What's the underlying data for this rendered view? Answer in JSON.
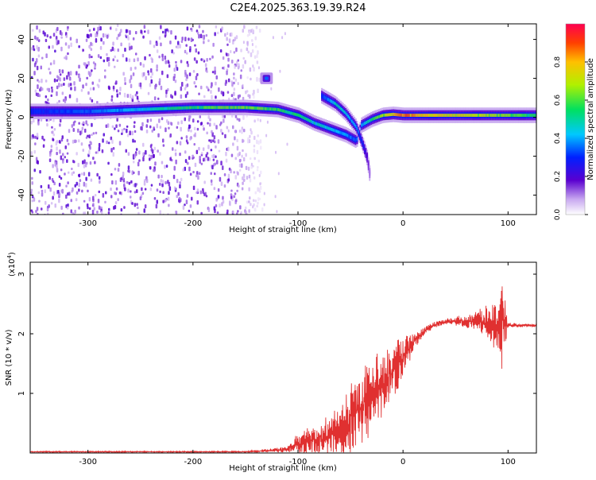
{
  "title": "C2E4.2025.363.19.39.R24",
  "chart_data": [
    {
      "type": "heatmap",
      "name": "spectrogram",
      "xlabel": "Height of straight line (km)",
      "ylabel": "Frequency (Hz)",
      "xlim": [
        -355,
        127
      ],
      "ylim": [
        -50,
        48
      ],
      "x_ticks": [
        -300,
        -200,
        -100,
        0,
        100
      ],
      "x_tick_labels": [
        "-300",
        "-200",
        "-100",
        "0",
        "100"
      ],
      "y_ticks": [
        -40,
        -20,
        0,
        20,
        40
      ],
      "y_tick_labels": [
        "-40",
        "-20",
        "0",
        "20",
        "40"
      ],
      "colorbar": {
        "label": "Normalized spectral amplitude",
        "range": [
          0,
          1
        ],
        "ticks": [
          0.0,
          0.2,
          0.4,
          0.6,
          0.8
        ],
        "tick_labels": [
          "0.0",
          "0.2",
          "0.4",
          "0.6",
          "0.8"
        ]
      },
      "main_band": {
        "x": [
          -355,
          -300,
          -250,
          -200,
          -150,
          -120,
          -100,
          -85,
          -70,
          -55,
          -45,
          -40,
          -30,
          -20,
          -10,
          0,
          20,
          50,
          80,
          100,
          127
        ],
        "freq": [
          3,
          3,
          4,
          5,
          5,
          4,
          1,
          -3,
          -6,
          -9,
          -12,
          -4,
          -1,
          1,
          1.5,
          1,
          1,
          1,
          1,
          1,
          1
        ],
        "amplitude": [
          0.3,
          0.35,
          0.45,
          0.6,
          0.65,
          0.6,
          0.55,
          0.5,
          0.45,
          0.4,
          0.35,
          0.4,
          0.55,
          0.7,
          0.8,
          0.9,
          0.8,
          0.75,
          0.7,
          0.65,
          0.55
        ]
      },
      "secondary_branch": {
        "x": [
          -78,
          -65,
          -55,
          -45,
          -40,
          -35,
          -32
        ],
        "freq": [
          11,
          7,
          2,
          -5,
          -12,
          -20,
          -30
        ],
        "amplitude": [
          0.3,
          0.5,
          0.45,
          0.4,
          0.3,
          0.2,
          0.1
        ]
      },
      "isolated_blob": {
        "x": -130,
        "freq": 20,
        "amplitude": 0.35
      },
      "noise_region": {
        "x": [
          -355,
          -170
        ],
        "amplitude": [
          0.05,
          0.2
        ]
      }
    },
    {
      "type": "line",
      "name": "snr",
      "xlabel": "Height of straight line (km)",
      "ylabel": "SNR (10 * v/v)",
      "y_multiplier": "(x10",
      "y_multiplier_exp": "4",
      "xlim": [
        -355,
        127
      ],
      "ylim": [
        0,
        3.2
      ],
      "x_ticks": [
        -300,
        -200,
        -100,
        0,
        100
      ],
      "x_tick_labels": [
        "-300",
        "-200",
        "-100",
        "0",
        "100"
      ],
      "y_ticks": [
        1,
        2,
        3
      ],
      "y_tick_labels": [
        "1",
        "2",
        "3"
      ],
      "color": "#e03030",
      "envelope": {
        "x": [
          -355,
          -150,
          -110,
          -100,
          -90,
          -80,
          -70,
          -60,
          -50,
          -40,
          -30,
          -20,
          -10,
          0,
          10,
          20,
          30,
          40,
          50,
          60,
          70,
          80,
          90,
          95,
          100,
          127
        ],
        "mean": [
          0.02,
          0.02,
          0.06,
          0.15,
          0.2,
          0.25,
          0.3,
          0.38,
          0.55,
          0.75,
          0.95,
          1.15,
          1.35,
          1.6,
          1.85,
          2.05,
          2.15,
          2.2,
          2.22,
          2.22,
          2.2,
          2.18,
          2.15,
          2.15,
          2.15,
          2.14
        ],
        "spread": [
          0.01,
          0.01,
          0.05,
          0.2,
          0.25,
          0.3,
          0.35,
          0.45,
          0.6,
          0.7,
          0.7,
          0.6,
          0.5,
          0.35,
          0.15,
          0.08,
          0.05,
          0.05,
          0.08,
          0.12,
          0.2,
          0.3,
          0.5,
          0.9,
          0.05,
          0.02
        ]
      }
    }
  ]
}
